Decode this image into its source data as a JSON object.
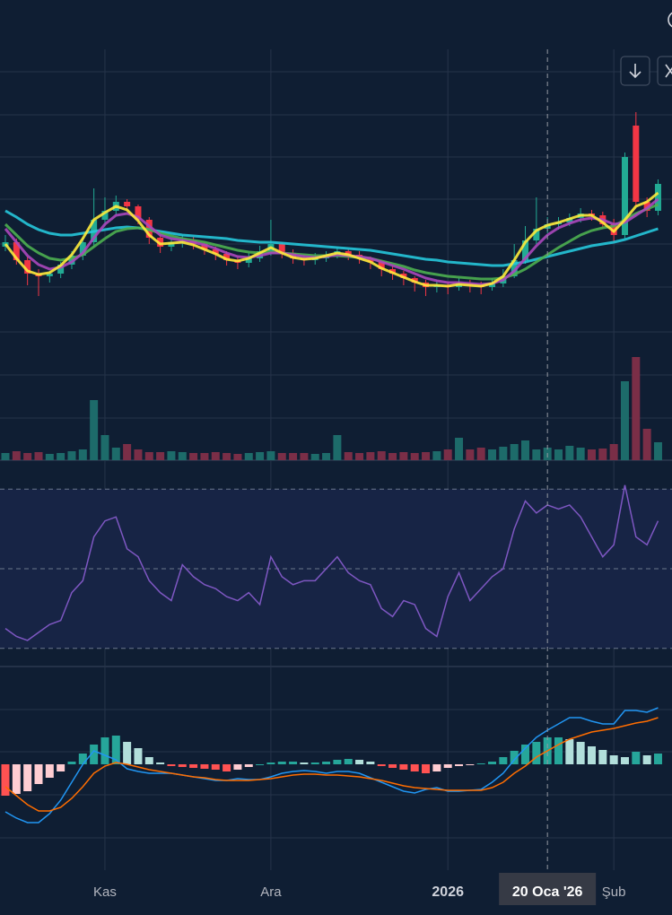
{
  "chart_data": [
    {
      "type": "candlestick",
      "categories": [
        null,
        null,
        null,
        null,
        null,
        null,
        null,
        null,
        null,
        "Kas",
        null,
        null,
        null,
        null,
        null,
        null,
        null,
        null,
        null,
        null,
        null,
        null,
        null,
        null,
        "Ara",
        null,
        null,
        null,
        null,
        null,
        null,
        null,
        null,
        null,
        null,
        null,
        null,
        null,
        null,
        null,
        "2026",
        null,
        null,
        null,
        null,
        null,
        null,
        null,
        null,
        "20 Oca '26",
        null,
        null,
        null,
        null,
        null,
        "Şub",
        null,
        null,
        null,
        null
      ],
      "highlight": "20 Oca '26",
      "open": [
        95,
        100,
        80,
        65,
        62,
        65,
        75,
        85,
        100,
        125,
        135,
        145,
        140,
        125,
        105,
        95,
        100,
        102,
        98,
        92,
        87,
        80,
        77,
        82,
        90,
        98,
        88,
        82,
        80,
        82,
        85,
        90,
        86,
        82,
        78,
        70,
        65,
        60,
        55,
        50,
        52,
        50,
        54,
        52,
        50,
        54,
        62,
        80,
        102,
        115,
        120,
        122,
        127,
        132,
        130,
        120,
        108,
        230,
        145,
        135
      ],
      "high": [
        108,
        104,
        84,
        70,
        68,
        78,
        90,
        106,
        160,
        150,
        152,
        148,
        142,
        128,
        108,
        104,
        108,
        106,
        100,
        95,
        90,
        84,
        88,
        96,
        125,
        100,
        92,
        86,
        88,
        90,
        94,
        92,
        90,
        84,
        80,
        74,
        68,
        62,
        58,
        58,
        56,
        60,
        58,
        56,
        60,
        70,
        98,
        118,
        150,
        128,
        128,
        132,
        138,
        136,
        134,
        126,
        200,
        245,
        150,
        170
      ],
      "low": [
        90,
        75,
        52,
        40,
        55,
        60,
        70,
        80,
        95,
        118,
        130,
        135,
        120,
        98,
        88,
        90,
        94,
        92,
        86,
        80,
        74,
        70,
        72,
        78,
        85,
        82,
        76,
        74,
        75,
        78,
        82,
        80,
        76,
        70,
        62,
        58,
        52,
        45,
        40,
        44,
        42,
        46,
        44,
        42,
        46,
        50,
        60,
        76,
        98,
        110,
        114,
        118,
        122,
        124,
        115,
        100,
        104,
        140,
        128,
        130
      ],
      "close": [
        100,
        80,
        65,
        62,
        65,
        75,
        85,
        100,
        125,
        135,
        145,
        140,
        125,
        105,
        95,
        100,
        102,
        98,
        92,
        87,
        80,
        77,
        82,
        90,
        98,
        88,
        82,
        80,
        82,
        85,
        90,
        86,
        82,
        78,
        70,
        65,
        60,
        55,
        50,
        52,
        50,
        54,
        52,
        50,
        54,
        62,
        80,
        102,
        115,
        120,
        122,
        127,
        132,
        130,
        120,
        108,
        195,
        145,
        135,
        165
      ],
      "up_color": "#22ab94",
      "down_color": "#f23645",
      "ylim": [
        0,
        310
      ],
      "lines": [
        {
          "color": "#26c6da",
          "values": [
            135,
            128,
            120,
            114,
            110,
            108,
            108,
            110,
            112,
            114,
            116,
            117,
            116,
            114,
            112,
            110,
            108,
            107,
            106,
            105,
            104,
            102,
            101,
            100,
            100,
            99,
            98,
            97,
            96,
            95,
            94,
            93,
            92,
            91,
            89,
            87,
            85,
            83,
            81,
            80,
            78,
            77,
            76,
            75,
            74,
            74,
            76,
            78,
            81,
            84,
            87,
            90,
            93,
            96,
            98,
            100,
            103,
            107,
            111,
            115
          ]
        },
        {
          "color": "#4caf50",
          "values": [
            120,
            108,
            96,
            88,
            82,
            80,
            82,
            86,
            95,
            104,
            112,
            115,
            116,
            114,
            110,
            107,
            104,
            102,
            100,
            97,
            94,
            91,
            89,
            88,
            89,
            88,
            87,
            86,
            85,
            85,
            85,
            84,
            83,
            82,
            79,
            76,
            73,
            69,
            66,
            64,
            62,
            61,
            60,
            59,
            59,
            60,
            64,
            70,
            78,
            86,
            94,
            101,
            108,
            113,
            116,
            118,
            125,
            132,
            137,
            142
          ]
        },
        {
          "color": "#ab47bc",
          "values": [
            115,
            100,
            85,
            75,
            70,
            72,
            78,
            88,
            105,
            120,
            130,
            132,
            128,
            118,
            108,
            104,
            102,
            100,
            97,
            93,
            88,
            84,
            83,
            85,
            88,
            88,
            86,
            84,
            83,
            84,
            86,
            85,
            84,
            82,
            78,
            74,
            70,
            65,
            60,
            57,
            55,
            55,
            54,
            53,
            54,
            58,
            68,
            82,
            96,
            108,
            116,
            121,
            125,
            127,
            125,
            120,
            122,
            130,
            138,
            148
          ]
        },
        {
          "color": "#ffeb3b",
          "values": [
            98,
            82,
            68,
            64,
            66,
            74,
            86,
            104,
            125,
            133,
            140,
            136,
            124,
            108,
            98,
            99,
            100,
            97,
            92,
            87,
            81,
            79,
            82,
            88,
            94,
            88,
            83,
            81,
            82,
            85,
            88,
            86,
            82,
            78,
            71,
            66,
            61,
            56,
            52,
            52,
            51,
            53,
            52,
            51,
            54,
            62,
            80,
            100,
            113,
            119,
            122,
            126,
            130,
            130,
            122,
            112,
            125,
            140,
            145,
            155
          ]
        }
      ]
    },
    {
      "type": "bar",
      "values": [
        8,
        10,
        8,
        9,
        7,
        8,
        10,
        12,
        67,
        28,
        14,
        18,
        12,
        9,
        9,
        10,
        9,
        8,
        8,
        9,
        8,
        7,
        8,
        9,
        10,
        8,
        8,
        8,
        7,
        8,
        28,
        9,
        8,
        9,
        10,
        8,
        9,
        8,
        9,
        10,
        12,
        25,
        12,
        14,
        12,
        15,
        18,
        22,
        12,
        14,
        12,
        16,
        14,
        12,
        13,
        18,
        88,
        115,
        35,
        20
      ],
      "up_color": "#1d6b6a",
      "down_color": "#7a2e47",
      "ylim": [
        0,
        143
      ]
    },
    {
      "type": "line",
      "values": [
        35,
        33,
        32,
        34,
        36,
        37,
        44,
        47,
        58,
        62,
        63,
        55,
        53,
        47,
        44,
        42,
        51,
        48,
        46,
        45,
        43,
        42,
        44,
        41,
        53,
        48,
        46,
        47,
        47,
        50,
        53,
        49,
        47,
        46,
        40,
        38,
        42,
        41,
        35,
        33,
        43,
        49,
        42,
        45,
        48,
        50,
        60,
        67,
        64,
        66,
        65,
        66,
        63,
        58,
        53,
        56,
        71,
        58,
        56,
        62
      ],
      "color": "#7e57c2",
      "ylim": [
        25,
        75
      ],
      "yticks": [
        30,
        50,
        70
      ],
      "band_color": "#172445"
    },
    {
      "type": "macd",
      "histogram": [
        -35,
        -33,
        -30,
        -22,
        -15,
        -8,
        3,
        12,
        22,
        30,
        32,
        25,
        18,
        8,
        2,
        -2,
        -3,
        -4,
        -5,
        -6,
        -8,
        -6,
        -3,
        0,
        2,
        3,
        3,
        2,
        2,
        3,
        5,
        6,
        5,
        3,
        -2,
        -4,
        -6,
        -8,
        -10,
        -8,
        -4,
        -2,
        -1,
        1,
        3,
        8,
        15,
        22,
        25,
        30,
        30,
        28,
        25,
        20,
        16,
        10,
        8,
        14,
        10,
        12
      ],
      "macd": [
        -53,
        -60,
        -65,
        -65,
        -55,
        -40,
        -20,
        0,
        15,
        10,
        5,
        -5,
        -8,
        -10,
        -10,
        -10,
        -12,
        -14,
        -16,
        -18,
        -18,
        -16,
        -17,
        -17,
        -14,
        -10,
        -8,
        -7,
        -8,
        -10,
        -8,
        -8,
        -10,
        -15,
        -20,
        -25,
        -30,
        -32,
        -28,
        -26,
        -30,
        -30,
        -29,
        -28,
        -20,
        -10,
        5,
        18,
        30,
        38,
        45,
        52,
        52,
        48,
        45,
        45,
        60,
        60,
        58,
        63
      ],
      "signal": [
        -25,
        -35,
        -45,
        -52,
        -52,
        -48,
        -38,
        -25,
        -10,
        -2,
        2,
        0,
        -3,
        -6,
        -8,
        -10,
        -12,
        -14,
        -15,
        -17,
        -18,
        -18,
        -18,
        -17,
        -16,
        -14,
        -12,
        -11,
        -11,
        -12,
        -12,
        -13,
        -14,
        -16,
        -18,
        -21,
        -24,
        -26,
        -27,
        -28,
        -29,
        -29,
        -29,
        -29,
        -26,
        -20,
        -10,
        -2,
        8,
        15,
        22,
        28,
        32,
        36,
        38,
        40,
        43,
        46,
        48,
        52
      ],
      "macd_color": "#2196f3",
      "signal_color": "#ff6d00",
      "hist_colors": [
        "#26a69a",
        "#b2dfdb",
        "#ff5252",
        "#ffcdd2"
      ],
      "ylim": [
        -118,
        109
      ]
    }
  ]
}
